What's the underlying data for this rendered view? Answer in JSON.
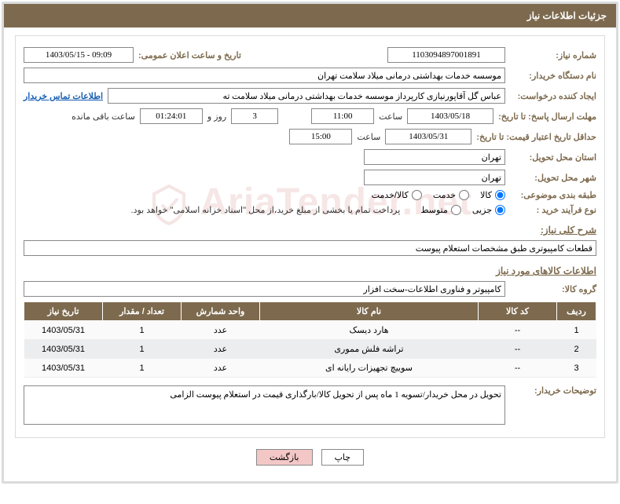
{
  "titleBar": "جزئیات اطلاعات نیاز",
  "labels": {
    "needNo": "شماره نیاز:",
    "publicDate": "تاریخ و ساعت اعلان عمومی:",
    "buyerOrg": "نام دستگاه خریدار:",
    "creator": "ایجاد کننده درخواست:",
    "buyerContact": "اطلاعات تماس خریدار",
    "deadlineTo": "مهلت ارسال پاسخ: تا تاریخ:",
    "hour": "ساعت",
    "daysAnd": "روز و",
    "remaining": "ساعت باقی مانده",
    "validityTo": "حداقل تاریخ اعتبار قیمت: تا تاریخ:",
    "deliveryProvince": "استان محل تحویل:",
    "deliveryCity": "شهر محل تحویل:",
    "subjectCat": "طبقه بندی موضوعی:",
    "buyProcess": "نوع فرآیند خرید :",
    "needDescTitle": "شرح کلی نیاز:",
    "goodsInfoTitle": "اطلاعات کالاهای مورد نیاز",
    "goodsGroup": "گروه کالا:",
    "buyerNotes": "توضیحات خریدار:"
  },
  "fields": {
    "needNo": "1103094897001891",
    "publicDate": "1403/05/15 - 09:09",
    "buyerOrg": "موسسه خدمات بهداشتی درمانی میلاد سلامت تهران",
    "creator": "عباس گل آقاپورنیازی کارپرداز موسسه خدمات بهداشتی درمانی میلاد سلامت ته",
    "deadlineDate": "1403/05/18",
    "deadlineHour": "11:00",
    "remainDays": "3",
    "remainClock": "01:24:01",
    "validityDate": "1403/05/31",
    "validityHour": "15:00",
    "province": "تهران",
    "city": "تهران",
    "needDesc": "قطعات کامپیوتری طبق مشخصات استعلام پیوست",
    "goodsGroup": "کامپیوتر و فناوری اطلاعات-سخت افزار",
    "buyerNotes": "تحویل در محل خریدار/تسویه 1 ماه پس از تحویل کالا/بارگذاری قیمت در استعلام پیوست الزامی"
  },
  "radios": {
    "cat": {
      "goods": "کالا",
      "service": "خدمت",
      "goodsService": "کالا/خدمت"
    },
    "proc": {
      "partial": "جزیی",
      "medium": "متوسط"
    },
    "procNote": "پرداخت تمام یا بخشی از مبلغ خرید،از محل \"اسناد خزانه اسلامی\" خواهد بود."
  },
  "table": {
    "headers": {
      "row": "ردیف",
      "code": "کد کالا",
      "name": "نام کالا",
      "unit": "واحد شمارش",
      "qty": "تعداد / مقدار",
      "needDate": "تاریخ نیاز"
    },
    "rows": [
      {
        "row": "1",
        "code": "--",
        "name": "هارد دیسک",
        "unit": "عدد",
        "qty": "1",
        "needDate": "1403/05/31"
      },
      {
        "row": "2",
        "code": "--",
        "name": "تراشه فلش مموری",
        "unit": "عدد",
        "qty": "1",
        "needDate": "1403/05/31"
      },
      {
        "row": "3",
        "code": "--",
        "name": "سوییچ تجهیزات رایانه ای",
        "unit": "عدد",
        "qty": "1",
        "needDate": "1403/05/31"
      }
    ]
  },
  "buttons": {
    "print": "چاپ",
    "back": "بازگشت"
  },
  "colors": {
    "accent": "#7d6a4e",
    "border": "#dadbdc",
    "link": "#1a5fb4",
    "backBtn": "#f4c7c7"
  },
  "watermark": "AriaTender.net"
}
